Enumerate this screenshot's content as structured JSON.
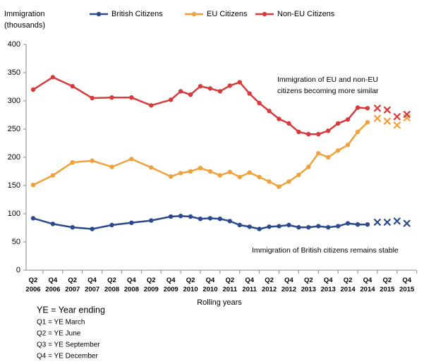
{
  "chart_data": {
    "type": "line",
    "y_axis_title": [
      "Immigration",
      "(thousands)"
    ],
    "x_axis_title": "Rolling years",
    "categories": [
      "Q2 2006",
      null,
      "Q4 2006",
      null,
      "Q2 2007",
      null,
      "Q4 2007",
      null,
      "Q2 2008",
      null,
      "Q4 2008",
      null,
      "Q2 2009",
      null,
      "Q4 2009",
      null,
      "Q2 2010",
      null,
      "Q4 2010",
      null,
      "Q2 2011",
      null,
      "Q4 2011",
      null,
      "Q2 2012",
      null,
      "Q4 2012",
      null,
      "Q2 2013",
      null,
      "Q4 2013",
      null,
      "Q2 2014",
      null,
      "Q4 2014",
      null,
      "Q2 2015",
      null,
      "Q4 2015"
    ],
    "series": [
      {
        "name": "British Citizens",
        "color": "#2b4a8e",
        "values": [
          92,
          null,
          82,
          null,
          76,
          null,
          73,
          null,
          80,
          null,
          84,
          null,
          88,
          null,
          95,
          96,
          95,
          91,
          92,
          91,
          87,
          80,
          77,
          73,
          77,
          78,
          80,
          76,
          76,
          78,
          76,
          78,
          83,
          81,
          81,
          null,
          null,
          null,
          null
        ],
        "provisional_values": [
          null,
          null,
          null,
          null,
          null,
          null,
          null,
          null,
          null,
          null,
          null,
          null,
          null,
          null,
          null,
          null,
          null,
          null,
          null,
          null,
          null,
          null,
          null,
          null,
          null,
          null,
          null,
          null,
          null,
          null,
          null,
          null,
          null,
          null,
          null,
          85,
          85,
          87,
          83
        ]
      },
      {
        "name": "EU Citizens",
        "color": "#f0a03c",
        "values": [
          151,
          null,
          168,
          null,
          191,
          null,
          194,
          null,
          183,
          null,
          197,
          null,
          182,
          null,
          166,
          172,
          175,
          181,
          175,
          168,
          174,
          165,
          173,
          165,
          157,
          148,
          157,
          169,
          183,
          207,
          200,
          212,
          222,
          245,
          262,
          null,
          null,
          null,
          null
        ],
        "provisional_values": [
          null,
          null,
          null,
          null,
          null,
          null,
          null,
          null,
          null,
          null,
          null,
          null,
          null,
          null,
          null,
          null,
          null,
          null,
          null,
          null,
          null,
          null,
          null,
          null,
          null,
          null,
          null,
          null,
          null,
          null,
          null,
          null,
          null,
          null,
          null,
          269,
          264,
          257,
          270
        ]
      },
      {
        "name": "Non-EU Citizens",
        "color": "#d83a3c",
        "values": [
          320,
          null,
          342,
          null,
          326,
          null,
          305,
          null,
          306,
          null,
          306,
          null,
          292,
          null,
          302,
          317,
          311,
          326,
          322,
          317,
          327,
          333,
          313,
          296,
          282,
          268,
          260,
          245,
          241,
          241,
          247,
          260,
          267,
          288,
          287,
          null,
          null,
          null,
          null
        ],
        "provisional_values": [
          null,
          null,
          null,
          null,
          null,
          null,
          null,
          null,
          null,
          null,
          null,
          null,
          null,
          null,
          null,
          null,
          null,
          null,
          null,
          null,
          null,
          null,
          null,
          null,
          null,
          null,
          null,
          null,
          null,
          null,
          null,
          null,
          null,
          null,
          null,
          287,
          284,
          272,
          276
        ]
      }
    ],
    "ylim": [
      0,
      400
    ],
    "yticks": [
      0,
      50,
      100,
      150,
      200,
      250,
      300,
      350,
      400
    ],
    "grid": false,
    "annotations": [
      {
        "lines": [
          "Immigration of EU and non-EU",
          "citizens becoming more similar"
        ]
      },
      {
        "lines": [
          "Immigration of British citizens remains stable"
        ]
      }
    ],
    "notes": [
      "YE = Year ending",
      "Q1 = YE March",
      "Q2 = YE June",
      "Q3 = YE September",
      "Q4 = YE December"
    ]
  }
}
